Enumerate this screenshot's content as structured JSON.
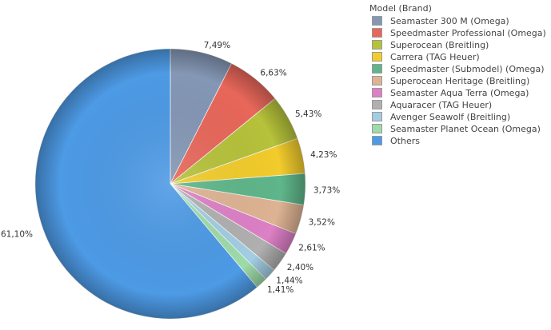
{
  "chart_data": {
    "type": "pie",
    "legend_title": "Model (Brand)",
    "legend_position": "top-right",
    "slices": [
      {
        "label": "Seamaster 300 M (Omega)",
        "value": 7.49,
        "value_label": "7,49%",
        "color": "#8497b5"
      },
      {
        "label": "Speedmaster Professional (Omega)",
        "value": 6.63,
        "value_label": "6,63%",
        "color": "#e8675a"
      },
      {
        "label": "Superocean (Breitling)",
        "value": 5.43,
        "value_label": "5,43%",
        "color": "#b6c23a"
      },
      {
        "label": "Carrera (TAG Heuer)",
        "value": 4.23,
        "value_label": "4,23%",
        "color": "#f2cc2c"
      },
      {
        "label": "Speedmaster (Submodel) (Omega)",
        "value": 3.73,
        "value_label": "3,73%",
        "color": "#5fb68a"
      },
      {
        "label": "Superocean Heritage (Breitling)",
        "value": 3.52,
        "value_label": "3,52%",
        "color": "#deb393"
      },
      {
        "label": "Seamaster Aqua Terra (Omega)",
        "value": 2.61,
        "value_label": "2,61%",
        "color": "#dd80c6"
      },
      {
        "label": "Aquaracer (TAG Heuer)",
        "value": 2.4,
        "value_label": "2,40%",
        "color": "#b0b0b0"
      },
      {
        "label": "Avenger Seawolf (Breitling)",
        "value": 1.44,
        "value_label": "1,44%",
        "color": "#a2cde3"
      },
      {
        "label": "Seamaster Planet Ocean (Omega)",
        "value": 1.41,
        "value_label": "1,41%",
        "color": "#9ddba9"
      },
      {
        "label": "Others",
        "value": 61.1,
        "value_label": "61,10%",
        "color": "#4d9ae5"
      }
    ]
  }
}
